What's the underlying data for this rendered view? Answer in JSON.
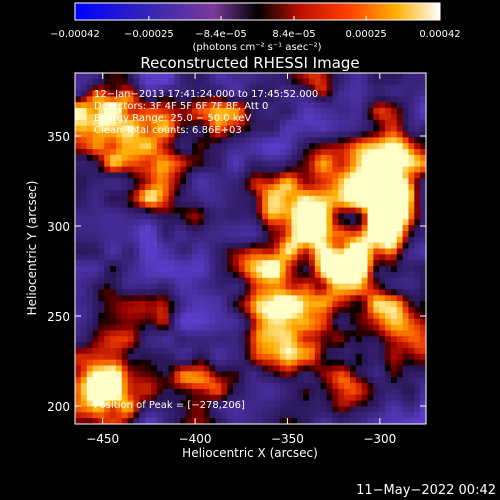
{
  "chart_data": {
    "type": "heatmap",
    "title": "Reconstructed RHESSI Image",
    "xlabel": "Heliocentric X (arcsec)",
    "ylabel": "Heliocentric Y (arcsec)",
    "xlim": [
      -465,
      -275
    ],
    "ylim": [
      190,
      385
    ],
    "x_ticks": [
      -450,
      -400,
      -350,
      -300
    ],
    "y_ticks": [
      200,
      250,
      300,
      350
    ],
    "x_tick_labels": [
      "−450",
      "−400",
      "−350",
      "−300"
    ],
    "y_tick_labels": [
      "200",
      "250",
      "300",
      "350"
    ],
    "colorbar": {
      "min": -0.00042,
      "max": 0.00042,
      "ticks": [
        -0.00042,
        -0.00025,
        -8.4e-05,
        8.4e-05,
        0.00025,
        0.00042
      ],
      "tick_labels": [
        "−0.00042",
        "−0.00025",
        "−8.4e−05",
        "8.4e−05",
        "0.00025",
        "0.00042"
      ],
      "units_label": "(photons cm⁻² s⁻¹ asec⁻²)"
    },
    "annotations": [
      "12−Jan−2013 17:41:24.000 to 17:45:52.000",
      "Detectors: 3F 4F 5F 6F 7F 8F, Att 0",
      "Energy Range: 25.0 − 50.0 keV",
      "Clean     Total counts: 6.86E+03"
    ],
    "peak_label": "Position of Peak = [−278,206]",
    "peak_position": [
      -278,
      206
    ],
    "timestamp": "11−May−2022 00:42",
    "grid": false,
    "colors": {
      "background": "#000000",
      "foreground": "#ffffff"
    }
  }
}
